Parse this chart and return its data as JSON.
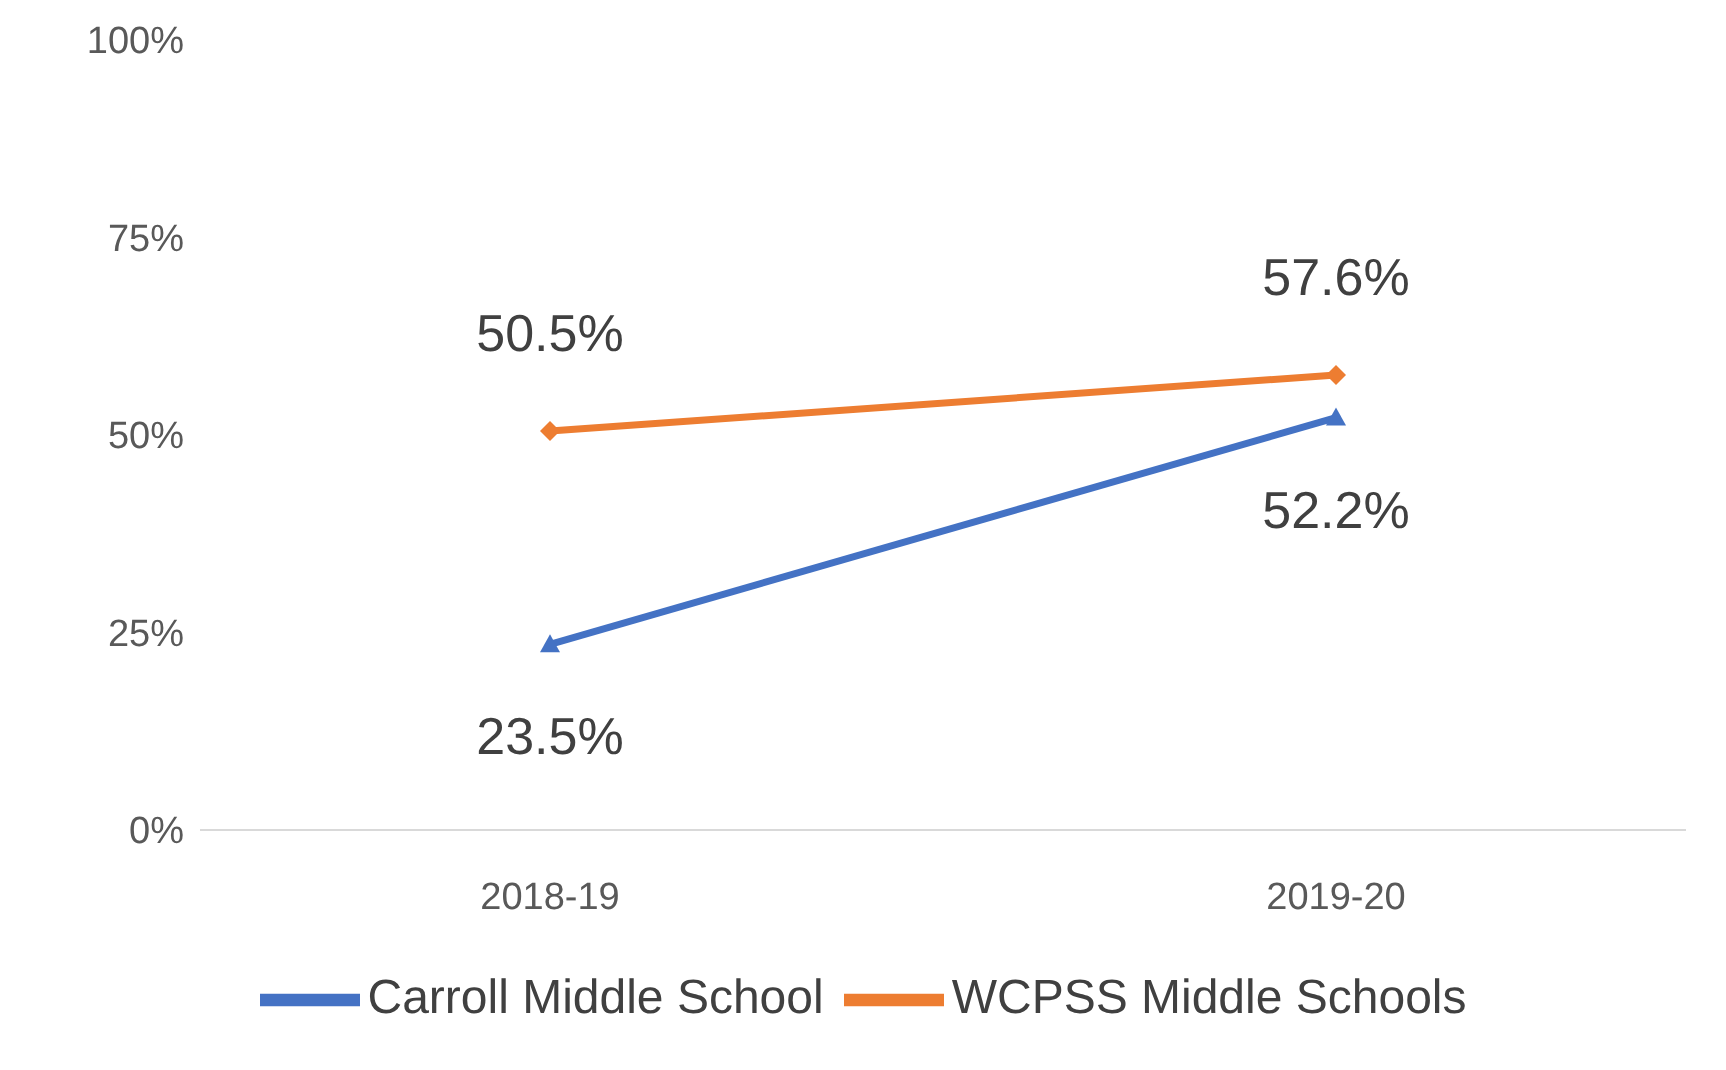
{
  "chart_data": {
    "type": "line",
    "categories": [
      "2018-19",
      "2019-20"
    ],
    "series": [
      {
        "name": "Carroll Middle School",
        "color": "#4472c4",
        "marker": "triangle",
        "values": [
          23.5,
          52.2
        ],
        "value_labels": [
          "23.5%",
          "52.2%"
        ]
      },
      {
        "name": "WCPSS Middle Schools",
        "color": "#ed7d31",
        "marker": "diamond",
        "values": [
          50.5,
          57.6
        ],
        "value_labels": [
          "50.5%",
          "57.6%"
        ]
      }
    ],
    "ylim": [
      0,
      100
    ],
    "yticks": [
      {
        "value": 0,
        "label": "0%"
      },
      {
        "value": 25,
        "label": "25%"
      },
      {
        "value": 50,
        "label": "50%"
      },
      {
        "value": 75,
        "label": "75%"
      },
      {
        "value": 100,
        "label": "100%"
      }
    ],
    "grid": false,
    "legend": "bottom"
  }
}
